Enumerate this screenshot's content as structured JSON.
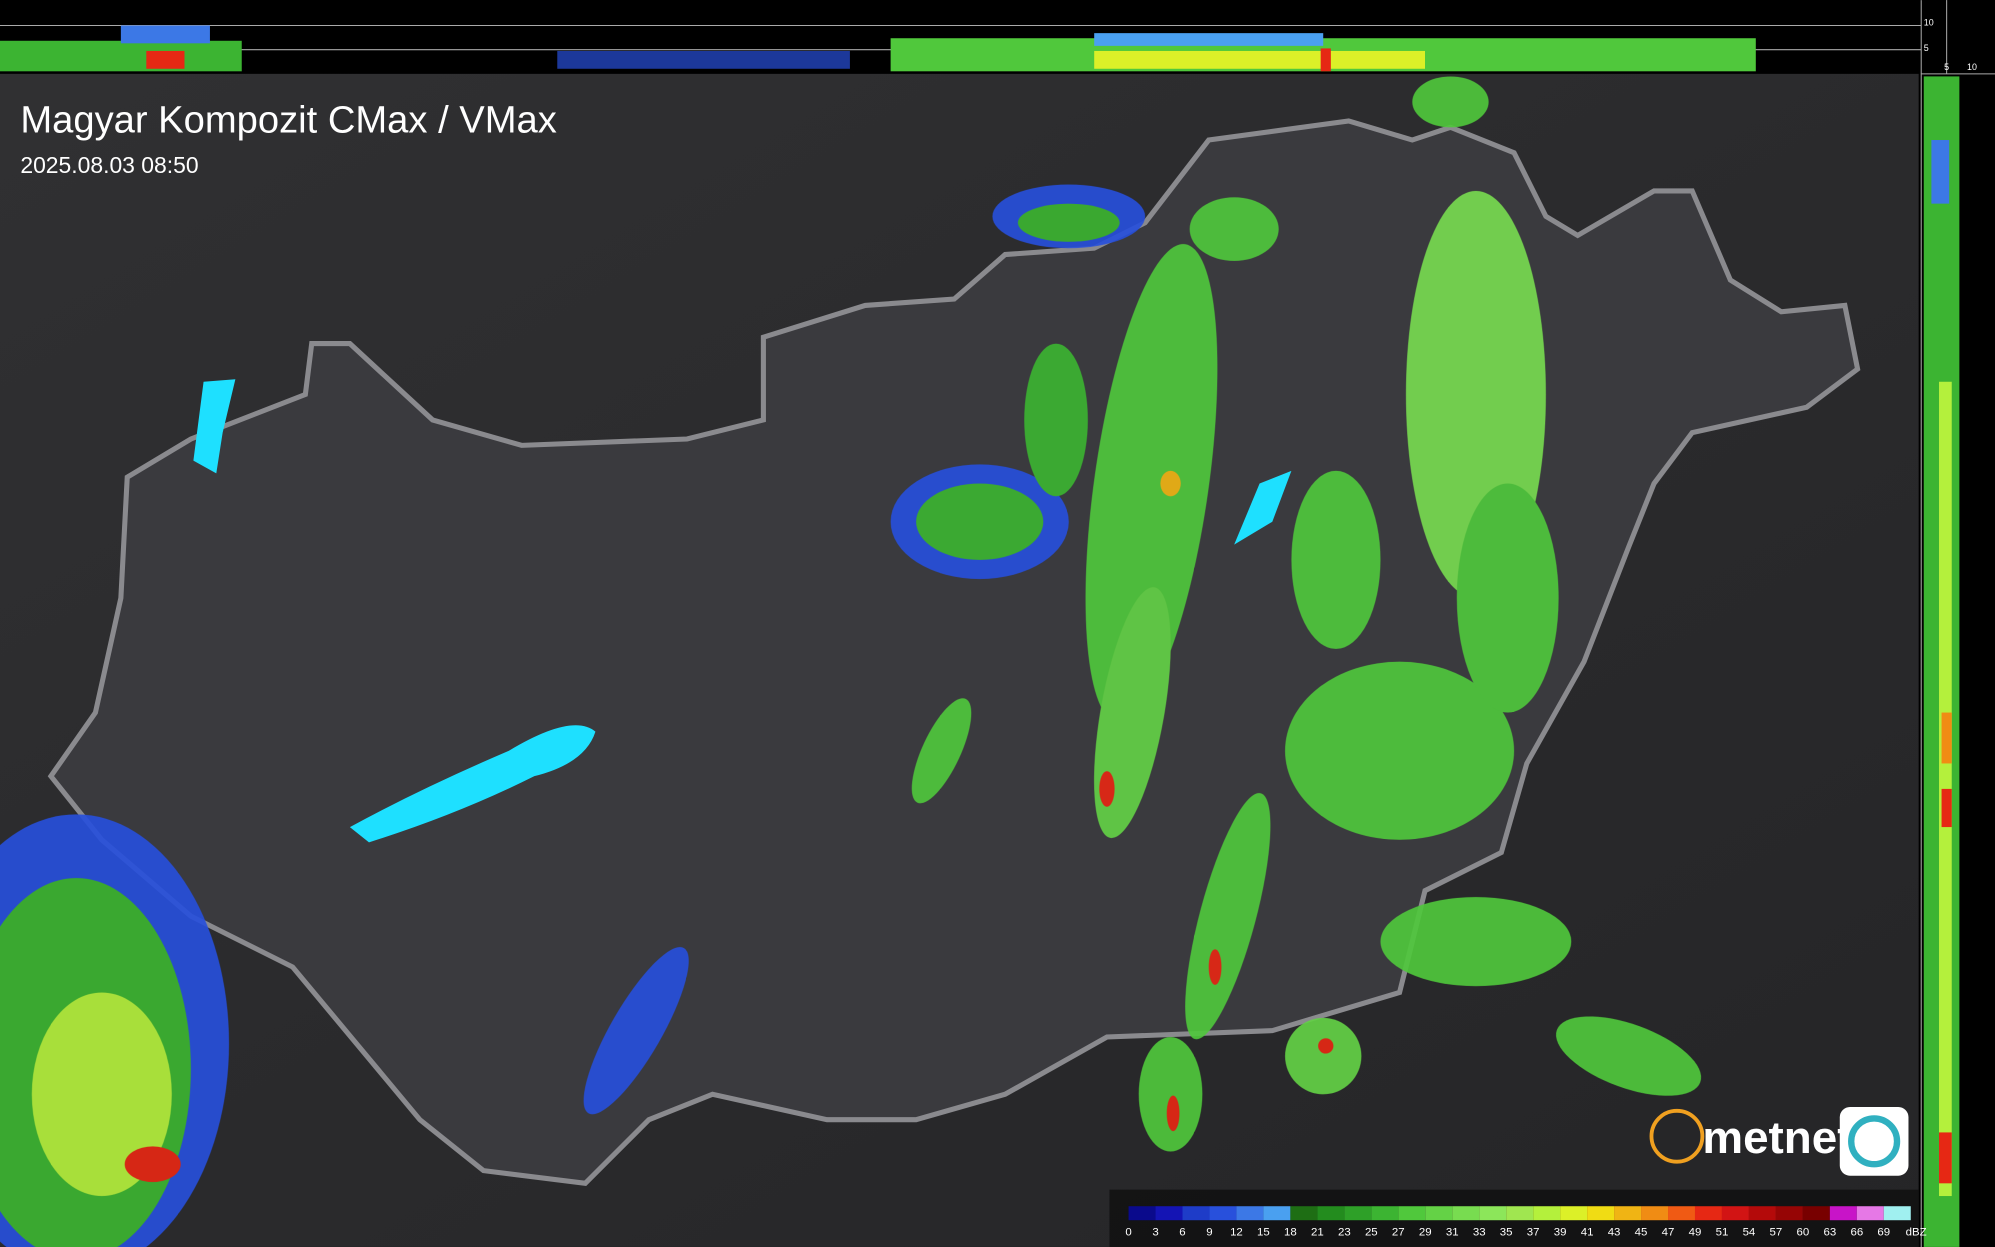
{
  "header": {
    "title": "Magyar Kompozit CMax / VMax",
    "timestamp": "2025.08.03 08:50"
  },
  "profile": {
    "top_ticks": [
      "10",
      "5"
    ],
    "side_ticks": [
      "5",
      "10"
    ]
  },
  "logo": {
    "text": "metnet"
  },
  "legend": {
    "unit": "dBZ",
    "labels": [
      "0",
      "3",
      "6",
      "9",
      "12",
      "15",
      "18",
      "21",
      "23",
      "25",
      "27",
      "29",
      "31",
      "33",
      "35",
      "37",
      "39",
      "41",
      "43",
      "45",
      "47",
      "49",
      "51",
      "54",
      "57",
      "60",
      "63",
      "66",
      "69"
    ],
    "colors": [
      "#0a0a8c",
      "#1414b4",
      "#1e3cc8",
      "#2850dc",
      "#3c78e6",
      "#4aa0f0",
      "#1e6e14",
      "#238c1e",
      "#2ea028",
      "#3cb432",
      "#50c83c",
      "#64d246",
      "#78dc50",
      "#8ce65a",
      "#a0e650",
      "#b4f03c",
      "#dcf028",
      "#f0dc14",
      "#f0b414",
      "#f08c14",
      "#f05a14",
      "#e62814",
      "#d21414",
      "#b40a0a",
      "#960505",
      "#780000",
      "#c814c8",
      "#e678e6",
      "#a0f0f0"
    ]
  }
}
